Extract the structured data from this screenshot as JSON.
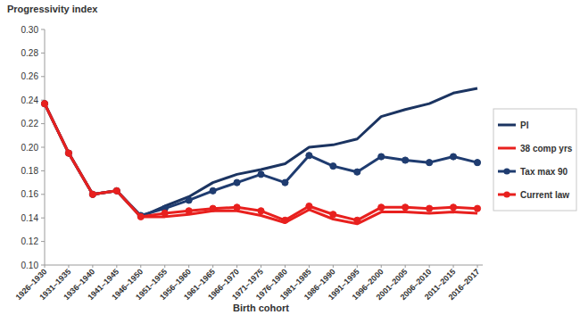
{
  "chart_data": {
    "type": "line",
    "y_label": "Progressivity index",
    "x_label": "Birth cohort",
    "categories": [
      "1926–1930",
      "1931–1935",
      "1936–1940",
      "1941–1945",
      "1946–1950",
      "1951–1955",
      "1956–1960",
      "1961–1965",
      "1966–1970",
      "1971–1975",
      "1976–1980",
      "1981–1985",
      "1986–1990",
      "1991–1995",
      "1996–2000",
      "2001–2005",
      "2006–2010",
      "2011–2015",
      "2016–2017"
    ],
    "series": [
      {
        "name": "PI",
        "color": "#1b3461",
        "marker": "none",
        "line_style": "solid",
        "values": [
          0.237,
          0.195,
          0.16,
          0.163,
          0.141,
          0.15,
          0.158,
          0.17,
          0.177,
          0.181,
          0.186,
          0.2,
          0.202,
          0.207,
          0.226,
          0.232,
          0.237,
          0.246,
          0.25
        ]
      },
      {
        "name": "38 comp yrs",
        "color": "#e8201e",
        "marker": "none",
        "line_style": "solid",
        "values": [
          0.237,
          0.195,
          0.16,
          0.163,
          0.141,
          0.141,
          0.143,
          0.146,
          0.146,
          0.142,
          0.136,
          0.147,
          0.139,
          0.135,
          0.145,
          0.145,
          0.144,
          0.145,
          0.144
        ]
      },
      {
        "name": "Tax max 90",
        "color": "#1f3c70",
        "marker": "circle",
        "line_style": "solid",
        "values": [
          0.237,
          0.195,
          0.16,
          0.163,
          0.142,
          0.148,
          0.155,
          0.163,
          0.17,
          0.177,
          0.17,
          0.193,
          0.184,
          0.179,
          0.192,
          0.189,
          0.187,
          0.192,
          0.187
        ]
      },
      {
        "name": "Current law",
        "color": "#e8201e",
        "marker": "circle",
        "line_style": "solid",
        "values": [
          0.237,
          0.195,
          0.16,
          0.163,
          0.141,
          0.144,
          0.146,
          0.148,
          0.149,
          0.146,
          0.138,
          0.15,
          0.143,
          0.138,
          0.149,
          0.149,
          0.148,
          0.149,
          0.148
        ]
      }
    ],
    "ylim": [
      0.1,
      0.3
    ],
    "yticks": [
      {
        "value": 0.1,
        "label": "0.10"
      },
      0.12,
      0.14,
      0.16,
      0.18,
      {
        "value": 0.2,
        "label": "0.20"
      },
      0.22,
      0.24,
      0.26,
      0.28,
      {
        "value": 0.3,
        "label": "0.30"
      }
    ],
    "grid": false,
    "legend": "right"
  }
}
